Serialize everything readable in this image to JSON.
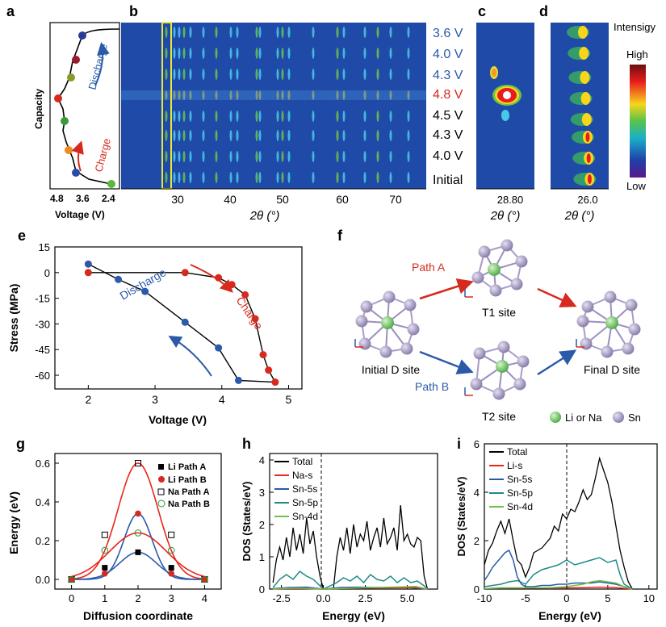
{
  "panel_letters": [
    "a",
    "b",
    "c",
    "d",
    "e",
    "f",
    "g",
    "h",
    "i"
  ],
  "panel_a": {
    "ylabel": "Capacity",
    "xlabel": "Voltage (V)",
    "ticks": [
      "4.8",
      "3.6",
      "2.4"
    ],
    "charge_label": "Charge",
    "discharge_label": "Discharge"
  },
  "panel_b": {
    "xlabel": "2θ (°)",
    "ticks": [
      "30",
      "40",
      "50",
      "60",
      "70"
    ],
    "voltage_labels": [
      {
        "text": "3.6 V",
        "color": "#2a5aa8"
      },
      {
        "text": "4.0 V",
        "color": "#2a5aa8"
      },
      {
        "text": "4.3 V",
        "color": "#2a5aa8"
      },
      {
        "text": "4.8 V",
        "color": "#d62a1f"
      },
      {
        "text": "4.5 V",
        "color": "#000000"
      },
      {
        "text": "4.3 V",
        "color": "#000000"
      },
      {
        "text": "4.0 V",
        "color": "#000000"
      },
      {
        "text": "Initial",
        "color": "#000000"
      }
    ]
  },
  "panel_c": {
    "xlabel": "2θ (°)",
    "tick": "28.80"
  },
  "panel_d": {
    "xlabel": "2θ (°)",
    "tick": "26.0",
    "legend_title": "Intensigy",
    "legend_high": "High",
    "legend_low": "Low"
  },
  "panel_e": {
    "xlabel": "Voltage (V)",
    "ylabel": "Stress (MPa)",
    "charge_label": "Charge",
    "discharge_label": "Discharge",
    "xticks": [
      "2",
      "3",
      "4",
      "5"
    ],
    "yticks": [
      "15",
      "0",
      "-15",
      "-30",
      "-45",
      "-60"
    ]
  },
  "panel_f": {
    "path_a": "Path A",
    "path_b": "Path B",
    "t1": "T1 site",
    "t2": "T2 site",
    "initial": "Initial D site",
    "final": "Final D site",
    "legend_li": "Li or Na",
    "legend_sn": "Sn"
  },
  "panel_g": {
    "xlabel": "Diffusion coordinate",
    "ylabel": "Energy (eV)",
    "xticks": [
      "0",
      "1",
      "2",
      "3",
      "4"
    ],
    "yticks": [
      "0.0",
      "0.2",
      "0.4",
      "0.6"
    ],
    "legend": [
      "Li Path A",
      "Li Path B",
      "Na Path A",
      "Na Path B"
    ]
  },
  "panel_h": {
    "xlabel": "Energy (eV)",
    "ylabel": "DOS (States/eV)",
    "xticks": [
      "-2.5",
      "0.0",
      "2.5",
      "5.0"
    ],
    "yticks": [
      "0",
      "1",
      "2",
      "3",
      "4"
    ],
    "legend": [
      "Total",
      "Na-s",
      "Sn-5s",
      "Sn-5p",
      "Sn-4d"
    ]
  },
  "panel_i": {
    "xlabel": "Energy (eV)",
    "ylabel": "DOS (States/eV)",
    "xticks": [
      "-10",
      "-5",
      "0",
      "5",
      "10"
    ],
    "yticks": [
      "0",
      "2",
      "4",
      "6"
    ],
    "legend": [
      "Total",
      "Li-s",
      "Sn-5s",
      "Sn-5p",
      "Sn-4d"
    ]
  },
  "colors": {
    "charge": "#d62a1f",
    "discharge": "#2a5aa8",
    "total": "#000000",
    "na_s": "#e8261c",
    "sn_5s": "#2a5aa8",
    "sn_5p": "#1e8a8a",
    "sn_4d": "#6cc24a",
    "heatmap_bg": "#1f4aa8",
    "highlight": "#e8e83a"
  },
  "chart_data": [
    {
      "type": "line",
      "panel": "e",
      "xlabel": "Voltage (V)",
      "ylabel": "Stress (MPa)",
      "xlim": [
        1.5,
        5.2
      ],
      "ylim": [
        -68,
        15
      ],
      "series": [
        {
          "name": "Charge",
          "x": [
            2.0,
            3.45,
            3.95,
            4.15,
            4.35,
            4.5,
            4.62,
            4.7,
            4.8
          ],
          "y": [
            0,
            0,
            -3,
            -7,
            -13,
            -27,
            -48,
            -57,
            -64
          ]
        },
        {
          "name": "Discharge",
          "x": [
            2.0,
            2.45,
            2.85,
            3.45,
            3.95,
            4.25
          ],
          "y": [
            5,
            -4,
            -11,
            -29,
            -44,
            -63
          ]
        }
      ]
    },
    {
      "type": "line",
      "panel": "g",
      "xlabel": "Diffusion coordinate",
      "ylabel": "Energy (eV)",
      "xlim": [
        -0.5,
        4.5
      ],
      "ylim": [
        -0.05,
        0.65
      ],
      "x": [
        0,
        1,
        2,
        3,
        4
      ],
      "series": [
        {
          "name": "Li Path A",
          "values": [
            0,
            0.06,
            0.14,
            0.06,
            0
          ]
        },
        {
          "name": "Li Path B",
          "values": [
            0,
            0.03,
            0.34,
            0.03,
            0
          ]
        },
        {
          "name": "Na Path A",
          "values": [
            0,
            0.23,
            0.6,
            0.23,
            0
          ]
        },
        {
          "name": "Na Path B",
          "values": [
            0,
            0.15,
            0.24,
            0.15,
            0
          ]
        }
      ]
    },
    {
      "type": "line",
      "panel": "h",
      "xlabel": "Energy (eV)",
      "ylabel": "DOS (States/eV)",
      "xlim": [
        -3.2,
        6.8
      ],
      "ylim": [
        0,
        4.2
      ],
      "series": [
        {
          "name": "Total",
          "x": [
            -3.0,
            -2.8,
            -2.6,
            -2.4,
            -2.2,
            -2.0,
            -1.8,
            -1.6,
            -1.4,
            -1.2,
            -1.0,
            -0.8,
            -0.6,
            -0.4,
            -0.2,
            0.0,
            0.2,
            0.4,
            0.6,
            0.8,
            1.0,
            1.2,
            1.4,
            1.6,
            1.8,
            2.0,
            2.2,
            2.4,
            2.6,
            2.8,
            3.0,
            3.2,
            3.4,
            3.6,
            3.8,
            4.0,
            4.2,
            4.4,
            4.6,
            4.8,
            5.0,
            5.2,
            5.4,
            5.6,
            5.8,
            6.0,
            6.2
          ],
          "y": [
            0.2,
            0.9,
            1.3,
            0.9,
            1.6,
            1.0,
            1.9,
            1.2,
            1.7,
            1.1,
            2.2,
            1.4,
            1.8,
            1.0,
            0.4,
            0.0,
            0.0,
            0.0,
            0.0,
            1.0,
            1.6,
            1.2,
            1.9,
            1.1,
            2.0,
            1.3,
            1.7,
            1.5,
            2.1,
            1.2,
            1.6,
            1.9,
            1.3,
            2.2,
            1.4,
            1.6,
            1.9,
            1.2,
            2.6,
            1.5,
            1.7,
            1.4,
            1.3,
            1.6,
            1.5,
            0.4,
            0.0
          ]
        },
        {
          "name": "Sn-5p",
          "x": [
            -3.0,
            -2.6,
            -2.2,
            -1.8,
            -1.4,
            -1.0,
            -0.6,
            -0.2,
            0.0,
            0.8,
            1.2,
            1.6,
            2.0,
            2.4,
            2.8,
            3.2,
            3.6,
            4.0,
            4.4,
            4.8,
            5.2,
            5.6,
            6.0,
            6.2
          ],
          "y": [
            0.05,
            0.3,
            0.45,
            0.3,
            0.55,
            0.4,
            0.3,
            0.1,
            0.0,
            0.2,
            0.35,
            0.25,
            0.4,
            0.2,
            0.45,
            0.3,
            0.25,
            0.4,
            0.2,
            0.35,
            0.2,
            0.25,
            0.1,
            0.0
          ]
        },
        {
          "name": "Sn-5s",
          "x": [
            -3.0,
            -2.0,
            -1.0,
            0.0,
            1.0,
            2.0,
            3.0,
            4.0,
            5.0,
            6.2
          ],
          "y": [
            0.02,
            0.05,
            0.06,
            0.0,
            0.05,
            0.06,
            0.05,
            0.04,
            0.05,
            0.0
          ]
        },
        {
          "name": "Na-s",
          "x": [
            -3.0,
            -1.5,
            0.0,
            1.0,
            2.5,
            4.0,
            5.5,
            6.2
          ],
          "y": [
            0.01,
            0.02,
            0.0,
            0.02,
            0.03,
            0.04,
            0.05,
            0.0
          ]
        },
        {
          "name": "Sn-4d",
          "x": [
            -3.0,
            -1.5,
            0.0,
            1.0,
            2.5,
            4.0,
            5.5,
            6.2
          ],
          "y": [
            0.01,
            0.03,
            0.0,
            0.02,
            0.04,
            0.06,
            0.08,
            0.0
          ]
        }
      ]
    },
    {
      "type": "line",
      "panel": "i",
      "xlabel": "Energy (eV)",
      "ylabel": "DOS (States/eV)",
      "xlim": [
        -10,
        11
      ],
      "ylim": [
        0,
        6
      ],
      "series": [
        {
          "name": "Total",
          "x": [
            -10,
            -9.5,
            -9,
            -8.5,
            -8,
            -7.5,
            -7,
            -6.5,
            -6,
            -5.5,
            -5,
            -4.5,
            -4,
            -3.5,
            -3,
            -2.5,
            -2,
            -1.5,
            -1,
            -0.5,
            0,
            0.5,
            1,
            1.5,
            2,
            2.5,
            3,
            3.5,
            4,
            4.5,
            5,
            5.5,
            6,
            6.5,
            7,
            7.5,
            8
          ],
          "y": [
            1.0,
            1.6,
            1.9,
            2.4,
            2.8,
            2.3,
            2.9,
            2.0,
            1.2,
            1.0,
            0.5,
            0.9,
            1.5,
            1.6,
            1.7,
            1.9,
            2.1,
            2.6,
            2.4,
            3.1,
            2.9,
            3.3,
            3.2,
            3.6,
            4.1,
            3.7,
            3.9,
            4.6,
            5.4,
            4.9,
            4.4,
            3.6,
            2.6,
            1.6,
            0.9,
            0.3,
            0.0
          ]
        },
        {
          "name": "Sn-5s",
          "x": [
            -10,
            -9.5,
            -9,
            -8.5,
            -8,
            -7.5,
            -7,
            -6.5,
            -6,
            -5.5,
            -5,
            -4,
            -3,
            -2,
            -1,
            0,
            1,
            2,
            3,
            4,
            5,
            6,
            7,
            8
          ],
          "y": [
            0.35,
            0.6,
            0.9,
            1.1,
            1.3,
            1.5,
            1.6,
            1.2,
            0.5,
            0.2,
            0.1,
            0.1,
            0.15,
            0.15,
            0.2,
            0.2,
            0.25,
            0.25,
            0.25,
            0.3,
            0.25,
            0.2,
            0.1,
            0.0
          ]
        },
        {
          "name": "Sn-5p",
          "x": [
            -10,
            -9,
            -8,
            -7,
            -6,
            -5,
            -4,
            -3,
            -2,
            -1,
            0,
            1,
            2,
            3,
            4,
            5,
            6,
            6.5,
            7,
            8
          ],
          "y": [
            0.1,
            0.15,
            0.2,
            0.3,
            0.35,
            0.2,
            0.6,
            0.8,
            0.9,
            1.0,
            1.2,
            1.0,
            1.1,
            1.2,
            1.3,
            1.1,
            1.2,
            0.6,
            0.2,
            0.0
          ]
        },
        {
          "name": "Li-s",
          "x": [
            -10,
            -8,
            -6,
            -4,
            -2,
            0,
            2,
            4,
            6,
            8
          ],
          "y": [
            0.02,
            0.05,
            0.05,
            0.04,
            0.05,
            0.05,
            0.06,
            0.08,
            0.06,
            0.0
          ]
        },
        {
          "name": "Sn-4d",
          "x": [
            -10,
            -8,
            -6,
            -4,
            -2,
            0,
            2,
            3,
            4,
            5,
            6,
            7,
            8
          ],
          "y": [
            0.02,
            0.04,
            0.05,
            0.05,
            0.06,
            0.1,
            0.2,
            0.3,
            0.35,
            0.3,
            0.25,
            0.1,
            0.0
          ]
        }
      ]
    }
  ]
}
